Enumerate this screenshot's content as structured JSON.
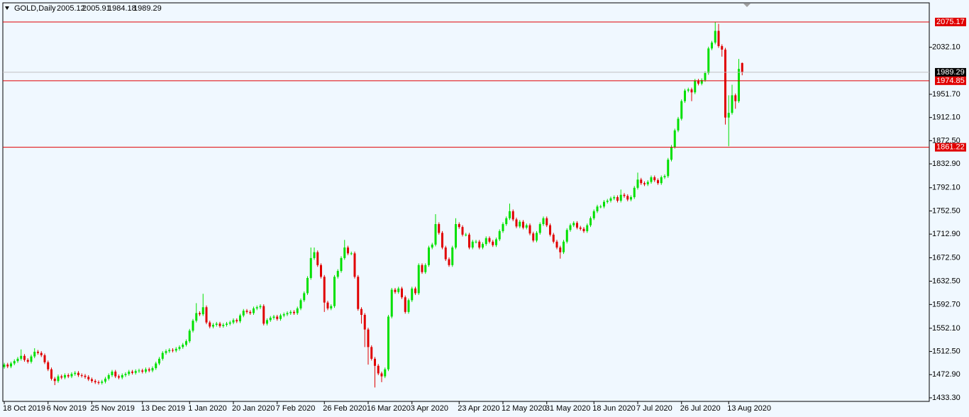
{
  "chart_data": {
    "type": "candlestick",
    "title": "GOLD,Daily",
    "bull_color": "#00e000",
    "bear_color": "#e00000",
    "categories": [
      "18 Oct 2019",
      null,
      null,
      null,
      null,
      null,
      null,
      null,
      null,
      null,
      null,
      null,
      null,
      "6 Nov 2019",
      null,
      null,
      null,
      null,
      null,
      null,
      null,
      null,
      null,
      null,
      null,
      null,
      "25 Nov 2019",
      null,
      null,
      null,
      null,
      null,
      null,
      null,
      null,
      null,
      null,
      null,
      null,
      null,
      null,
      "13 Dec 2019",
      null,
      null,
      null,
      null,
      null,
      null,
      null,
      null,
      null,
      null,
      null,
      null,
      null,
      "1 Jan 2020",
      null,
      null,
      null,
      null,
      null,
      null,
      null,
      null,
      null,
      null,
      null,
      null,
      "20 Jan 2020",
      null,
      null,
      null,
      null,
      null,
      null,
      null,
      null,
      null,
      null,
      null,
      null,
      "7 Feb 2020",
      null,
      null,
      null,
      null,
      null,
      null,
      null,
      null,
      null,
      null,
      null,
      null,
      null,
      "26 Feb 2020",
      null,
      null,
      null,
      null,
      null,
      null,
      null,
      null,
      null,
      null,
      null,
      null,
      "16 Mar 2020",
      null,
      null,
      null,
      null,
      null,
      null,
      null,
      null,
      null,
      null,
      null,
      null,
      "3 Apr 2020",
      null,
      null,
      null,
      null,
      null,
      null,
      null,
      null,
      null,
      null,
      null,
      null,
      null,
      "23 Apr 2020",
      null,
      null,
      null,
      null,
      null,
      null,
      null,
      null,
      null,
      null,
      null,
      null,
      "12 May 2020",
      null,
      null,
      null,
      null,
      null,
      null,
      null,
      null,
      null,
      null,
      null,
      null,
      "31 May 2020",
      null,
      null,
      null,
      null,
      null,
      null,
      null,
      null,
      null,
      null,
      null,
      null,
      null,
      "18 Jun 2020",
      null,
      null,
      null,
      null,
      null,
      null,
      null,
      null,
      null,
      null,
      null,
      null,
      "7 Jul 2020",
      null,
      null,
      null,
      null,
      null,
      null,
      null,
      null,
      null,
      null,
      null,
      null,
      "26 Jul 2020",
      null,
      null,
      null,
      null,
      null,
      null,
      null,
      null,
      null,
      null,
      null,
      null,
      null,
      "13 Aug 2020",
      null,
      null,
      null,
      null
    ],
    "open": [
      1486,
      1490,
      1487,
      1492,
      1496,
      1500,
      1505,
      1498,
      1495,
      1504,
      1512,
      1510,
      1506,
      1494,
      1482,
      1466,
      1462,
      1470,
      1468,
      1472,
      1470,
      1474,
      1476,
      1472,
      1471,
      1469,
      1465,
      1462,
      1460,
      1459,
      1461,
      1466,
      1472,
      1478,
      1470,
      1468,
      1472,
      1474,
      1478,
      1476,
      1479,
      1480,
      1478,
      1482,
      1480,
      1484,
      1492,
      1500,
      1510,
      1513,
      1515,
      1514,
      1517,
      1520,
      1524,
      1530,
      1548,
      1565,
      1578,
      1576,
      1588,
      1562,
      1555,
      1558,
      1560,
      1556,
      1558,
      1560,
      1562,
      1566,
      1564,
      1574,
      1582,
      1580,
      1578,
      1586,
      1588,
      1590,
      1560,
      1566,
      1570,
      1572,
      1568,
      1574,
      1576,
      1578,
      1580,
      1578,
      1586,
      1600,
      1612,
      1638,
      1672,
      1682,
      1660,
      1640,
      1596,
      1586,
      1590,
      1640,
      1650,
      1672,
      1690,
      1680,
      1680,
      1640,
      1585,
      1575,
      1550,
      1520,
      1500,
      1488,
      1475,
      1470,
      1482,
      1572,
      1618,
      1614,
      1620,
      1605,
      1580,
      1600,
      1620,
      1612,
      1660,
      1648,
      1660,
      1690,
      1695,
      1730,
      1715,
      1690,
      1670,
      1660,
      1690,
      1730,
      1725,
      1712,
      1712,
      1690,
      1700,
      1700,
      1690,
      1696,
      1706,
      1700,
      1694,
      1704,
      1718,
      1730,
      1740,
      1752,
      1738,
      1726,
      1734,
      1724,
      1728,
      1714,
      1702,
      1715,
      1730,
      1740,
      1728,
      1712,
      1700,
      1690,
      1682,
      1700,
      1720,
      1728,
      1732,
      1724,
      1722,
      1718,
      1728,
      1740,
      1752,
      1760,
      1760,
      1768,
      1770,
      1774,
      1776,
      1770,
      1780,
      1778,
      1772,
      1776,
      1792,
      1806,
      1800,
      1798,
      1802,
      1810,
      1805,
      1800,
      1810,
      1812,
      1840,
      1862,
      1890,
      1910,
      1940,
      1958,
      1960,
      1955,
      1975,
      1970,
      1976,
      1988,
      2030,
      2040,
      2060,
      2034,
      2028,
      1912,
      1920,
      1950,
      1940,
      2005.12
    ],
    "high": [
      1493,
      1493,
      1495,
      1499,
      1503,
      1516,
      1508,
      1501,
      1507,
      1518,
      1515,
      1513,
      1509,
      1497,
      1485,
      1469,
      1473,
      1473,
      1475,
      1475,
      1477,
      1479,
      1479,
      1475,
      1474,
      1472,
      1468,
      1465,
      1463,
      1464,
      1469,
      1475,
      1481,
      1481,
      1473,
      1475,
      1477,
      1481,
      1481,
      1482,
      1483,
      1483,
      1485,
      1485,
      1487,
      1495,
      1503,
      1513,
      1516,
      1518,
      1518,
      1520,
      1523,
      1527,
      1533,
      1551,
      1568,
      1595,
      1581,
      1611,
      1591,
      1565,
      1561,
      1563,
      1563,
      1561,
      1563,
      1565,
      1569,
      1569,
      1577,
      1585,
      1585,
      1583,
      1589,
      1591,
      1593,
      1593,
      1569,
      1573,
      1575,
      1575,
      1577,
      1579,
      1581,
      1583,
      1583,
      1589,
      1603,
      1615,
      1641,
      1690,
      1690,
      1685,
      1663,
      1643,
      1599,
      1593,
      1643,
      1653,
      1675,
      1703,
      1693,
      1683,
      1683,
      1643,
      1588,
      1578,
      1553,
      1523,
      1503,
      1491,
      1478,
      1485,
      1575,
      1621,
      1621,
      1623,
      1623,
      1608,
      1603,
      1623,
      1623,
      1663,
      1663,
      1663,
      1693,
      1698,
      1747,
      1733,
      1718,
      1693,
      1673,
      1693,
      1740,
      1733,
      1728,
      1715,
      1715,
      1703,
      1703,
      1703,
      1699,
      1709,
      1709,
      1703,
      1707,
      1721,
      1733,
      1743,
      1765,
      1755,
      1741,
      1737,
      1737,
      1731,
      1731,
      1717,
      1718,
      1733,
      1743,
      1743,
      1731,
      1715,
      1703,
      1693,
      1703,
      1723,
      1731,
      1735,
      1735,
      1727,
      1725,
      1731,
      1743,
      1755,
      1763,
      1763,
      1771,
      1773,
      1777,
      1779,
      1779,
      1789,
      1783,
      1781,
      1779,
      1795,
      1818,
      1809,
      1803,
      1805,
      1813,
      1813,
      1808,
      1813,
      1815,
      1843,
      1865,
      1893,
      1913,
      1943,
      1961,
      1963,
      1963,
      1978,
      1978,
      1979,
      1991,
      2033,
      2043,
      2075,
      2072,
      2037,
      2031,
      1950,
      1968,
      1953,
      2012,
      2005.91
    ],
    "low": [
      1483,
      1484,
      1484,
      1489,
      1493,
      1497,
      1495,
      1492,
      1492,
      1501,
      1507,
      1503,
      1491,
      1479,
      1463,
      1455,
      1459,
      1465,
      1465,
      1467,
      1467,
      1471,
      1469,
      1468,
      1466,
      1462,
      1459,
      1457,
      1456,
      1456,
      1458,
      1463,
      1469,
      1467,
      1465,
      1465,
      1469,
      1471,
      1473,
      1473,
      1476,
      1475,
      1475,
      1477,
      1477,
      1481,
      1489,
      1497,
      1507,
      1510,
      1511,
      1511,
      1514,
      1517,
      1521,
      1527,
      1545,
      1562,
      1573,
      1573,
      1559,
      1552,
      1552,
      1555,
      1553,
      1553,
      1555,
      1557,
      1559,
      1561,
      1561,
      1571,
      1577,
      1575,
      1575,
      1583,
      1585,
      1557,
      1557,
      1563,
      1567,
      1565,
      1565,
      1571,
      1573,
      1575,
      1575,
      1575,
      1583,
      1597,
      1609,
      1635,
      1669,
      1657,
      1637,
      1580,
      1583,
      1583,
      1587,
      1637,
      1647,
      1669,
      1677,
      1677,
      1637,
      1582,
      1560,
      1520,
      1490,
      1497,
      1451,
      1472,
      1460,
      1467,
      1479,
      1569,
      1611,
      1611,
      1602,
      1577,
      1577,
      1597,
      1609,
      1609,
      1645,
      1645,
      1657,
      1687,
      1692,
      1712,
      1687,
      1667,
      1657,
      1657,
      1687,
      1722,
      1709,
      1709,
      1687,
      1687,
      1697,
      1687,
      1687,
      1693,
      1697,
      1691,
      1691,
      1701,
      1715,
      1727,
      1737,
      1735,
      1723,
      1723,
      1721,
      1721,
      1711,
      1699,
      1699,
      1712,
      1727,
      1725,
      1709,
      1697,
      1687,
      1671,
      1679,
      1697,
      1717,
      1725,
      1721,
      1719,
      1715,
      1715,
      1725,
      1737,
      1749,
      1757,
      1757,
      1765,
      1767,
      1771,
      1767,
      1767,
      1775,
      1769,
      1769,
      1773,
      1789,
      1797,
      1795,
      1795,
      1799,
      1802,
      1797,
      1797,
      1807,
      1809,
      1837,
      1859,
      1887,
      1907,
      1937,
      1955,
      1940,
      1952,
      1967,
      1967,
      1973,
      1985,
      2027,
      2037,
      2031,
      2016,
      1900,
      1863,
      1917,
      1927,
      1937,
      1984.18
    ],
    "close": [
      1490,
      1487,
      1492,
      1496,
      1500,
      1505,
      1498,
      1495,
      1504,
      1512,
      1510,
      1506,
      1494,
      1482,
      1466,
      1462,
      1470,
      1468,
      1472,
      1470,
      1474,
      1476,
      1472,
      1471,
      1469,
      1465,
      1462,
      1460,
      1459,
      1461,
      1466,
      1472,
      1478,
      1470,
      1468,
      1472,
      1474,
      1478,
      1476,
      1479,
      1480,
      1478,
      1482,
      1480,
      1484,
      1492,
      1500,
      1510,
      1513,
      1515,
      1514,
      1517,
      1520,
      1524,
      1530,
      1548,
      1565,
      1578,
      1576,
      1588,
      1562,
      1555,
      1558,
      1560,
      1556,
      1558,
      1560,
      1562,
      1566,
      1564,
      1574,
      1582,
      1580,
      1578,
      1586,
      1588,
      1590,
      1560,
      1566,
      1570,
      1572,
      1568,
      1574,
      1576,
      1578,
      1580,
      1578,
      1586,
      1600,
      1612,
      1638,
      1672,
      1682,
      1660,
      1640,
      1596,
      1586,
      1590,
      1640,
      1650,
      1672,
      1690,
      1680,
      1680,
      1640,
      1585,
      1575,
      1550,
      1520,
      1500,
      1488,
      1475,
      1470,
      1482,
      1572,
      1618,
      1614,
      1620,
      1605,
      1580,
      1600,
      1620,
      1612,
      1660,
      1648,
      1660,
      1690,
      1695,
      1730,
      1715,
      1690,
      1670,
      1660,
      1690,
      1730,
      1725,
      1712,
      1712,
      1690,
      1700,
      1700,
      1690,
      1696,
      1706,
      1700,
      1694,
      1704,
      1718,
      1730,
      1740,
      1752,
      1738,
      1726,
      1734,
      1724,
      1728,
      1714,
      1702,
      1715,
      1730,
      1740,
      1728,
      1712,
      1700,
      1690,
      1682,
      1700,
      1720,
      1728,
      1732,
      1724,
      1722,
      1718,
      1728,
      1740,
      1752,
      1760,
      1760,
      1768,
      1770,
      1774,
      1776,
      1770,
      1780,
      1778,
      1772,
      1776,
      1792,
      1806,
      1800,
      1798,
      1802,
      1810,
      1805,
      1800,
      1810,
      1812,
      1840,
      1862,
      1890,
      1910,
      1940,
      1958,
      1960,
      1955,
      1975,
      1970,
      1976,
      1988,
      2030,
      2040,
      2060,
      2034,
      2028,
      1912,
      1920,
      1950,
      1940,
      1995,
      1989.29
    ],
    "ylim": [
      1427.2,
      2107.9
    ],
    "yticks": [
      {
        "value": 1433.3,
        "label": "1433.30"
      },
      {
        "value": 1472.9,
        "label": "1472.90"
      },
      {
        "value": 1512.5,
        "label": "1512.50"
      },
      {
        "value": 1552.1,
        "label": "1552.10"
      },
      {
        "value": 1592.7,
        "label": "1592.70"
      },
      {
        "value": 1632.5,
        "label": "1632.50"
      },
      {
        "value": 1672.5,
        "label": "1672.50"
      },
      {
        "value": 1712.9,
        "label": "1712.90"
      },
      {
        "value": 1752.5,
        "label": "1752.50"
      },
      {
        "value": 1792.1,
        "label": "1792.10"
      },
      {
        "value": 1832.9,
        "label": "1832.90"
      },
      {
        "value": 1872.5,
        "label": "1872.50"
      },
      {
        "value": 1912.1,
        "label": "1912.10"
      },
      {
        "value": 1951.7,
        "label": "1951.70"
      },
      {
        "value": 2032.1,
        "label": "2032.10"
      }
    ],
    "levels": [
      {
        "value": 2075.17,
        "color": "#e00000"
      },
      {
        "value": 1974.85,
        "color": "#e00000"
      },
      {
        "value": 1861.22,
        "color": "#e00000"
      }
    ],
    "price_line_color": "#c0c0c0",
    "background": "#f0f8ff"
  }
}
